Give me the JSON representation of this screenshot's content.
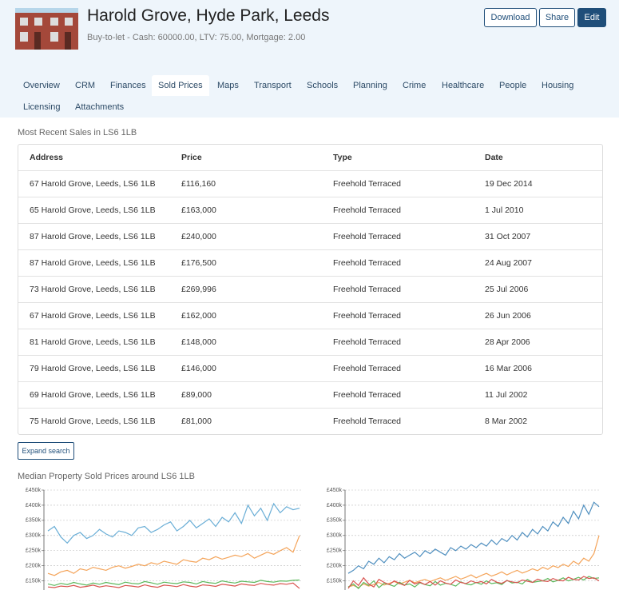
{
  "header": {
    "title": "Harold Grove, Hyde Park, Leeds",
    "subtitle": "Buy-to-let - Cash: 60000.00, LTV: 75.00, Mortgage: 2.00",
    "buttons": [
      "Download",
      "Share",
      "Edit"
    ]
  },
  "tabs": [
    "Overview",
    "CRM",
    "Finances",
    "Sold Prices",
    "Maps",
    "Transport",
    "Schools",
    "Planning",
    "Crime",
    "Healthcare",
    "People",
    "Housing",
    "Licensing",
    "Attachments"
  ],
  "sales": {
    "title": "Most Recent Sales in LS6 1LB",
    "columns": [
      "Address",
      "Price",
      "Type",
      "Date"
    ],
    "rows": [
      [
        "67 Harold Grove, Leeds, LS6 1LB",
        "£116,160",
        "Freehold Terraced",
        "19 Dec 2014"
      ],
      [
        "65 Harold Grove, Leeds, LS6 1LB",
        "£163,000",
        "Freehold Terraced",
        "1 Jul 2010"
      ],
      [
        "87 Harold Grove, Leeds, LS6 1LB",
        "£240,000",
        "Freehold Terraced",
        "31 Oct 2007"
      ],
      [
        "87 Harold Grove, Leeds, LS6 1LB",
        "£176,500",
        "Freehold Terraced",
        "24 Aug 2007"
      ],
      [
        "73 Harold Grove, Leeds, LS6 1LB",
        "£269,996",
        "Freehold Terraced",
        "25 Jul 2006"
      ],
      [
        "67 Harold Grove, Leeds, LS6 1LB",
        "£162,000",
        "Freehold Terraced",
        "26 Jun 2006"
      ],
      [
        "81 Harold Grove, Leeds, LS6 1LB",
        "£148,000",
        "Freehold Terraced",
        "28 Apr 2006"
      ],
      [
        "79 Harold Grove, Leeds, LS6 1LB",
        "£146,000",
        "Freehold Terraced",
        "16 Mar 2006"
      ],
      [
        "69 Harold Grove, Leeds, LS6 1LB",
        "£89,000",
        "Freehold Terraced",
        "11 Jul 2002"
      ],
      [
        "75 Harold Grove, Leeds, LS6 1LB",
        "£81,000",
        "Freehold Terraced",
        "8 Mar 2002"
      ]
    ],
    "button": "Expand search"
  },
  "charts_title": "Median Property Sold Prices around LS6 1LB",
  "chart_data": [
    {
      "type": "line",
      "grid": true,
      "ylim": [
        120000,
        450000
      ],
      "yticks": [
        {
          "value": 150000,
          "label": "£150k"
        },
        {
          "value": 200000,
          "label": "£200k"
        },
        {
          "value": 250000,
          "label": "£250k"
        },
        {
          "value": 300000,
          "label": "£300k"
        },
        {
          "value": 350000,
          "label": "£350k"
        },
        {
          "value": 400000,
          "label": "£400k"
        },
        {
          "value": 450000,
          "label": "£450k"
        }
      ],
      "categories": [
        null,
        null,
        null,
        null,
        null,
        null,
        null,
        null,
        null,
        null,
        null,
        null,
        null,
        null,
        null,
        null,
        null,
        null,
        null,
        null,
        null,
        null,
        null,
        null,
        null,
        null,
        null,
        null,
        null,
        null,
        null,
        null,
        null,
        null,
        null,
        null,
        null,
        null,
        null,
        null
      ],
      "series": [
        {
          "color": "#6aaed6",
          "values": [
            315000,
            330000,
            295000,
            275000,
            300000,
            310000,
            290000,
            300000,
            320000,
            305000,
            295000,
            315000,
            310000,
            300000,
            325000,
            330000,
            310000,
            320000,
            335000,
            345000,
            315000,
            330000,
            350000,
            325000,
            340000,
            355000,
            330000,
            360000,
            345000,
            375000,
            340000,
            400000,
            365000,
            390000,
            350000,
            405000,
            375000,
            395000,
            385000,
            390000
          ]
        },
        {
          "color": "#f4a45a",
          "values": [
            175000,
            168000,
            180000,
            185000,
            175000,
            190000,
            185000,
            195000,
            190000,
            185000,
            195000,
            200000,
            192000,
            198000,
            205000,
            200000,
            210000,
            205000,
            215000,
            210000,
            205000,
            220000,
            215000,
            212000,
            225000,
            220000,
            230000,
            222000,
            228000,
            235000,
            230000,
            240000,
            225000,
            235000,
            245000,
            238000,
            250000,
            260000,
            245000,
            300000
          ]
        },
        {
          "color": "#5cb85c",
          "values": [
            140000,
            135000,
            142000,
            138000,
            145000,
            140000,
            136000,
            143000,
            139000,
            145000,
            141000,
            138000,
            146000,
            142000,
            140000,
            148000,
            144000,
            139000,
            146000,
            143000,
            141000,
            147000,
            145000,
            140000,
            148000,
            144000,
            142000,
            150000,
            146000,
            143000,
            149000,
            147000,
            145000,
            152000,
            148000,
            146000,
            150000,
            149000,
            152000,
            153000
          ]
        },
        {
          "color": "#d9534f",
          "values": [
            130000,
            128000,
            133000,
            131000,
            135000,
            129000,
            132000,
            136000,
            130000,
            134000,
            131000,
            128000,
            135000,
            133000,
            130000,
            137000,
            132000,
            129000,
            136000,
            134000,
            131000,
            138000,
            133000,
            130000,
            137000,
            135000,
            132000,
            139000,
            136000,
            133000,
            140000,
            137000,
            135000,
            142000,
            138000,
            136000,
            141000,
            139000,
            143000,
            125000
          ]
        }
      ]
    },
    {
      "type": "line",
      "grid": true,
      "ylim": [
        120000,
        450000
      ],
      "yticks": [
        {
          "value": 150000,
          "label": "£150k"
        },
        {
          "value": 200000,
          "label": "£200k"
        },
        {
          "value": 250000,
          "label": "£250k"
        },
        {
          "value": 300000,
          "label": "£300k"
        },
        {
          "value": 350000,
          "label": "£350k"
        },
        {
          "value": 400000,
          "label": "£400k"
        },
        {
          "value": 450000,
          "label": "£450k"
        }
      ],
      "categories": [
        null,
        null,
        null,
        null,
        null,
        null,
        null,
        null,
        null,
        null,
        null,
        null,
        null,
        null,
        null,
        null,
        null,
        null,
        null,
        null,
        null,
        null,
        null,
        null,
        null,
        null,
        null,
        null,
        null,
        null,
        null,
        null,
        null,
        null,
        null,
        null,
        null,
        null,
        null,
        null,
        null,
        null,
        null,
        null,
        null,
        null,
        null,
        null,
        null,
        null
      ],
      "series": [
        {
          "color": "#4f8fbf",
          "values": [
            175000,
            185000,
            200000,
            190000,
            215000,
            205000,
            225000,
            210000,
            230000,
            220000,
            240000,
            225000,
            235000,
            245000,
            230000,
            250000,
            240000,
            255000,
            245000,
            235000,
            260000,
            250000,
            265000,
            255000,
            270000,
            260000,
            275000,
            265000,
            285000,
            270000,
            290000,
            280000,
            300000,
            285000,
            310000,
            295000,
            320000,
            305000,
            330000,
            315000,
            345000,
            330000,
            360000,
            340000,
            380000,
            355000,
            400000,
            370000,
            410000,
            395000
          ]
        },
        {
          "color": "#f4a45a",
          "values": [
            130000,
            135000,
            128000,
            140000,
            133000,
            138000,
            145000,
            136000,
            142000,
            148000,
            140000,
            146000,
            152000,
            144000,
            150000,
            155000,
            148000,
            154000,
            160000,
            152000,
            158000,
            165000,
            156000,
            162000,
            170000,
            160000,
            168000,
            175000,
            166000,
            172000,
            180000,
            170000,
            178000,
            185000,
            176000,
            182000,
            190000,
            184000,
            195000,
            188000,
            200000,
            194000,
            205000,
            198000,
            215000,
            205000,
            225000,
            215000,
            240000,
            300000
          ]
        },
        {
          "color": "#5cb85c",
          "values": [
            130000,
            140000,
            125000,
            145000,
            135000,
            150000,
            128000,
            142000,
            138000,
            132000,
            146000,
            136000,
            140000,
            130000,
            144000,
            138000,
            134000,
            148000,
            136000,
            142000,
            139000,
            133000,
            147000,
            140000,
            137000,
            145000,
            139000,
            150000,
            141000,
            144000,
            138000,
            152000,
            143000,
            146000,
            140000,
            155000,
            145000,
            148000,
            150000,
            158000,
            147000,
            152000,
            160000,
            150000,
            155000,
            162000,
            153000,
            165000,
            158000,
            160000
          ]
        },
        {
          "color": "#d9534f",
          "values": [
            125000,
            150000,
            135000,
            160000,
            140000,
            130000,
            155000,
            145000,
            138000,
            150000,
            142000,
            135000,
            152000,
            140000,
            146000,
            138000,
            148000,
            136000,
            150000,
            143000,
            139000,
            153000,
            145000,
            141000,
            150000,
            144000,
            148000,
            140000,
            155000,
            146000,
            142000,
            151000,
            147000,
            144000,
            153000,
            149000,
            145000,
            156000,
            150000,
            148000,
            158000,
            152000,
            150000,
            162000,
            155000,
            153000,
            165000,
            158000,
            160000,
            150000
          ]
        }
      ]
    }
  ]
}
